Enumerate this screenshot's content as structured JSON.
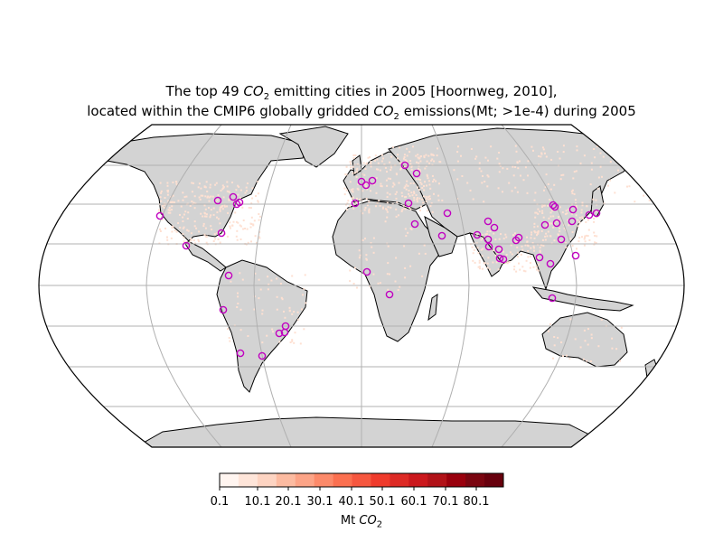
{
  "title": {
    "line1_pre": "The top 49 ",
    "line1_chem": "CO",
    "line1_sub": "2",
    "line1_post": " emitting cities in 2005 [Hoornweg, 2010],",
    "line2_pre": "located within the CMIP6 globally gridded ",
    "line2_chem": "CO",
    "line2_sub": "2",
    "line2_post": " emissions(Mt; >1e-4) during 2005"
  },
  "map": {
    "projection": "Robinson",
    "land_color": "#d3d3d3",
    "coast_color": "#000000",
    "grid_color": "#b0b0b0",
    "emission_color": "#fee0d2",
    "city_marker_color": "#c000c0",
    "city_count": 49
  },
  "colorbar": {
    "ticks": [
      "0.1",
      "10.1",
      "20.1",
      "30.1",
      "40.1",
      "50.1",
      "60.1",
      "70.1",
      "80.1"
    ],
    "unit_pre": "Mt ",
    "unit_chem": "CO",
    "unit_sub": "2",
    "colors": [
      "#fff5f0",
      "#fee5d9",
      "#fdd4c2",
      "#fcbba1",
      "#fca487",
      "#fc8a6a",
      "#fb7050",
      "#f6573f",
      "#ef3b2c",
      "#dd2a25",
      "#cb181d",
      "#b11218",
      "#99000d",
      "#7a0510",
      "#67000d"
    ]
  }
}
